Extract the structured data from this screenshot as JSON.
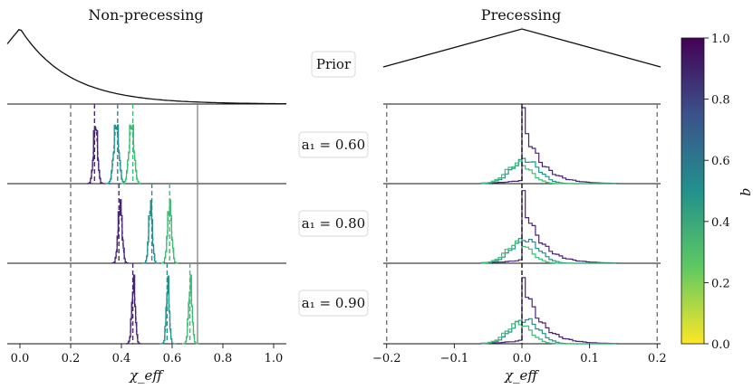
{
  "chart_data": {
    "type": "histogram-grid",
    "columns": [
      {
        "title": "Non-precessing",
        "xlabel": "χ_eff",
        "xlim": [
          -0.05,
          1.05
        ],
        "xticks": [
          "0.0",
          "0.2",
          "0.4",
          "0.6",
          "0.8",
          "1.0"
        ],
        "xtick_values": [
          0.0,
          0.2,
          0.4,
          0.6,
          0.8,
          1.0
        ],
        "prior": {
          "shape": "exponential-decay",
          "peak_x": 0.0,
          "start_height": 0.8
        }
      },
      {
        "title": "Precessing",
        "xlabel": "χ_eff",
        "xlim": [
          -0.205,
          0.205
        ],
        "xticks": [
          "−0.2",
          "−0.1",
          "0.0",
          "0.1",
          "0.2"
        ],
        "xtick_values": [
          -0.2,
          -0.1,
          0.0,
          0.1,
          0.2
        ],
        "prior": {
          "shape": "triangular",
          "peak_x": 0.0,
          "edge_height": 0.6
        }
      }
    ],
    "row_labels": [
      "Prior",
      "a₁ = 0.60",
      "a₁ = 0.80",
      "a₁ = 0.90"
    ],
    "rows": [
      {
        "a1": 0.6,
        "np_bound": 0.7,
        "np_gray": 0.2,
        "np_dashed": [
          0.294,
          0.385,
          0.445
        ],
        "np_hist": [
          {
            "q": 1.0,
            "mean": 0.298,
            "sd": 0.008
          },
          {
            "q": 0.5,
            "mean": 0.38,
            "sd": 0.01
          },
          {
            "q": 0.33,
            "mean": 0.44,
            "sd": 0.01
          }
        ],
        "p_hist": [
          {
            "q": 1.0,
            "center": 0.01,
            "width": 0.04
          },
          {
            "q": 0.5,
            "center": 0.005,
            "width": 0.03
          },
          {
            "q": 0.33,
            "center": -0.005,
            "width": 0.025
          }
        ]
      },
      {
        "a1": 0.8,
        "np_bound": 0.7,
        "np_gray": 0.2,
        "np_dashed": [
          0.39,
          0.52,
          0.59
        ],
        "np_hist": [
          {
            "q": 1.0,
            "mean": 0.395,
            "sd": 0.008
          },
          {
            "q": 0.5,
            "mean": 0.515,
            "sd": 0.007
          },
          {
            "q": 0.33,
            "mean": 0.59,
            "sd": 0.008
          }
        ],
        "p_hist": [
          {
            "q": 1.0,
            "center": 0.01,
            "width": 0.04
          },
          {
            "q": 0.5,
            "center": 0.005,
            "width": 0.03
          },
          {
            "q": 0.33,
            "center": -0.005,
            "width": 0.025
          }
        ]
      },
      {
        "a1": 0.9,
        "np_bound": 0.7,
        "np_gray": 0.2,
        "np_dashed": [
          0.445,
          0.58,
          0.67
        ],
        "np_hist": [
          {
            "q": 1.0,
            "mean": 0.448,
            "sd": 0.007
          },
          {
            "q": 0.5,
            "mean": 0.583,
            "sd": 0.006
          },
          {
            "q": 0.33,
            "mean": 0.672,
            "sd": 0.007
          }
        ],
        "p_hist": [
          {
            "q": 1.0,
            "center": 0.01,
            "width": 0.04
          },
          {
            "q": 0.5,
            "center": 0.005,
            "width": 0.03
          },
          {
            "q": 0.33,
            "center": -0.005,
            "width": 0.025
          }
        ]
      }
    ],
    "colorbar": {
      "label": "q",
      "range": [
        0.0,
        1.0
      ],
      "ticks": [
        "0.0",
        "0.2",
        "0.4",
        "0.6",
        "0.8",
        "1.0"
      ],
      "tick_values": [
        0.0,
        0.2,
        0.4,
        0.6,
        0.8,
        1.0
      ],
      "colormap": "viridis",
      "stops": [
        "#fde725",
        "#5ec962",
        "#21918c",
        "#3b528b",
        "#440154"
      ]
    },
    "series_colors": {
      "q1": "#482475",
      "q05": "#21918c",
      "q033": "#3dbc74"
    }
  }
}
